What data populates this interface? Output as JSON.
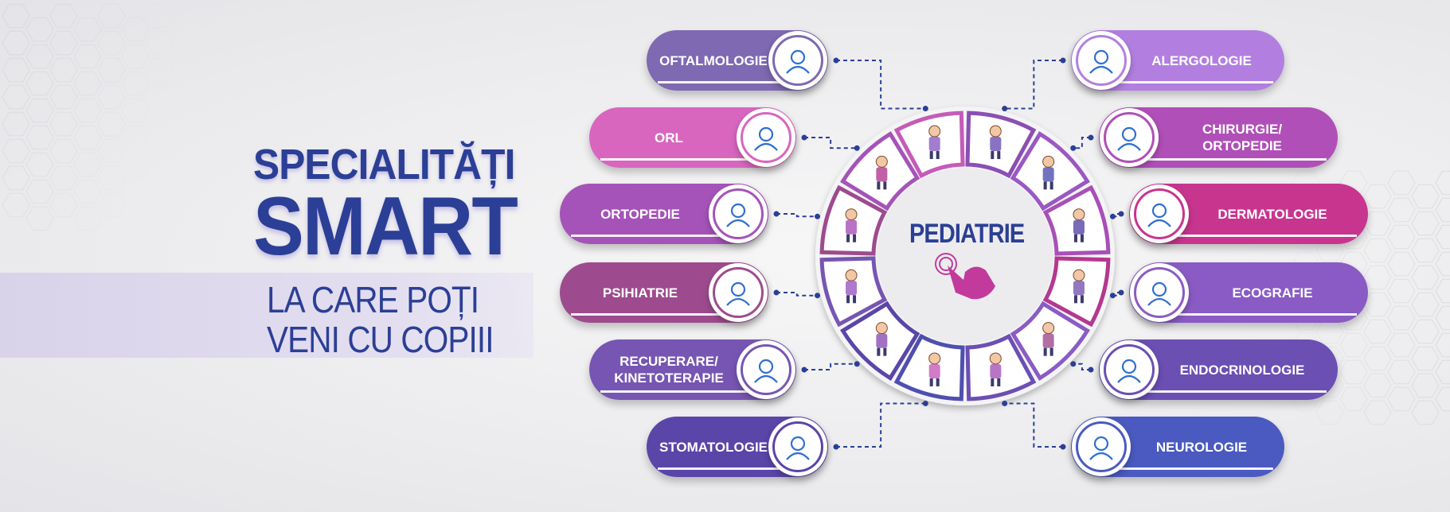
{
  "headline": {
    "line1": "SPECIALITĂȚI",
    "line2": "SMART",
    "line3": "LA CARE POȚI",
    "line4": "VENI CU COPIII"
  },
  "center": {
    "title": "PEDIATRIE",
    "icon": "pointing-hand-icon",
    "color": "#c23a9c"
  },
  "left_specialties": [
    {
      "label": "OFTALMOLOGIE",
      "icon": "eye-icon",
      "color": "#7e69b2"
    },
    {
      "label": "ORL",
      "icon": "ear-otoscope-icon",
      "color": "#d866bf"
    },
    {
      "label": "ORTOPEDIE",
      "icon": "bone-icon",
      "color": "#a553b8"
    },
    {
      "label": "PSIHIATRIE",
      "icon": "head-heart-icon",
      "color": "#9d4b8e"
    },
    {
      "label": "RECUPERARE/ KINETOTERAPIE",
      "icon": "rehab-walker-icon",
      "color": "#7755b2"
    },
    {
      "label": "STOMATOLOGIE",
      "icon": "tooth-hands-icon",
      "color": "#5a45a8"
    }
  ],
  "right_specialties": [
    {
      "label": "ALERGOLOGIE",
      "icon": "dandelion-icon",
      "color": "#b27fe0"
    },
    {
      "label": "CHIRURGIE/ ORTOPEDIE",
      "icon": "surgeon-icon",
      "color": "#b04fb8"
    },
    {
      "label": "DERMATOLOGIE",
      "icon": "skin-patient-icon",
      "color": "#c8358f"
    },
    {
      "label": "ECOGRAFIE",
      "icon": "ultrasound-icon",
      "color": "#8a5bc4"
    },
    {
      "label": "ENDOCRINOLOGIE",
      "icon": "thyroid-icon",
      "color": "#6b4fb3"
    },
    {
      "label": "NEUROLOGIE",
      "icon": "brain-search-icon",
      "color": "#4a5ac0"
    }
  ],
  "colors": {
    "text_primary": "#2b3f96",
    "connector": "#2b3f96",
    "wheel_border": "#8b4fb3"
  }
}
